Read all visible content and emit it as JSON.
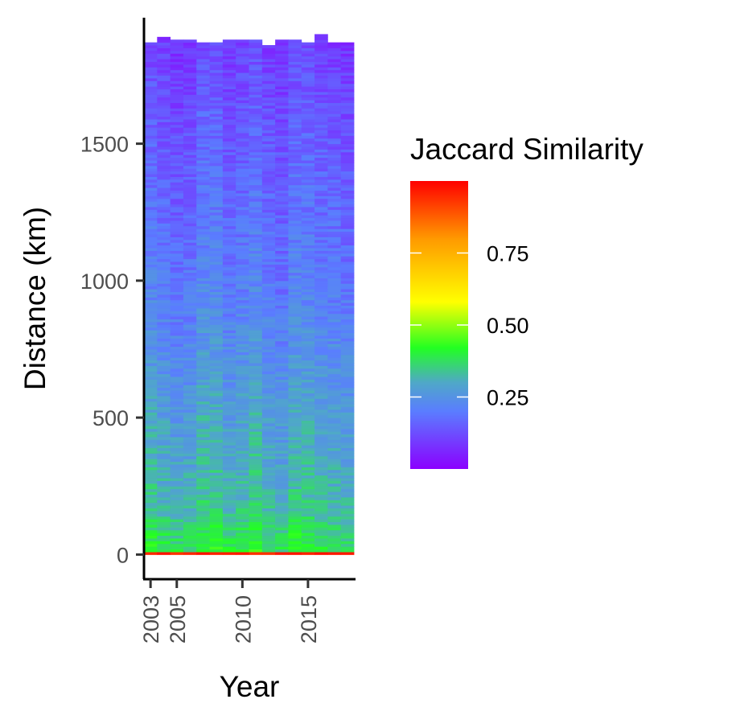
{
  "chart_data": {
    "type": "heatmap",
    "title": "",
    "xlabel": "Year",
    "ylabel": "Distance (km)",
    "x_ticks": [
      2003,
      2005,
      2010,
      2015
    ],
    "y_ticks": [
      0,
      500,
      1000,
      1500
    ],
    "xlim": [
      2002.5,
      2018.5
    ],
    "ylim": [
      -90,
      1960
    ],
    "x_years": [
      2002,
      2003,
      2004,
      2005,
      2006,
      2007,
      2008,
      2009,
      2010,
      2011,
      2012,
      2013,
      2014,
      2015,
      2016,
      2017,
      2018
    ],
    "max_distance_by_year": [
      1880,
      1870,
      1890,
      1880,
      1880,
      1870,
      1865,
      1880,
      1880,
      1875,
      1855,
      1875,
      1880,
      1870,
      1895,
      1870,
      1865
    ],
    "distance_bin_km": 10,
    "color_scale": {
      "name": "Jaccard Similarity",
      "min": 0,
      "max": 1,
      "stops": [
        {
          "value": 0.0,
          "color": "#8b00ff"
        },
        {
          "value": 0.2,
          "color": "#5a7dff"
        },
        {
          "value": 0.3,
          "color": "#4fa8c8"
        },
        {
          "value": 0.42,
          "color": "#22ff22"
        },
        {
          "value": 0.58,
          "color": "#ffff00"
        },
        {
          "value": 0.8,
          "color": "#ff9900"
        },
        {
          "value": 1.0,
          "color": "#ff0000"
        }
      ],
      "ticks": [
        0.25,
        0.5,
        0.75
      ],
      "tick_labels": [
        "0.25",
        "0.50",
        "0.75"
      ]
    },
    "approx_similarity_profile": [
      {
        "distance_km": 0,
        "value": 0.95
      },
      {
        "distance_km": 10,
        "value": 0.4
      },
      {
        "distance_km": 200,
        "value": 0.32
      },
      {
        "distance_km": 500,
        "value": 0.28
      },
      {
        "distance_km": 1000,
        "value": 0.2
      },
      {
        "distance_km": 1500,
        "value": 0.15
      },
      {
        "distance_km": 1880,
        "value": 0.1
      }
    ]
  }
}
